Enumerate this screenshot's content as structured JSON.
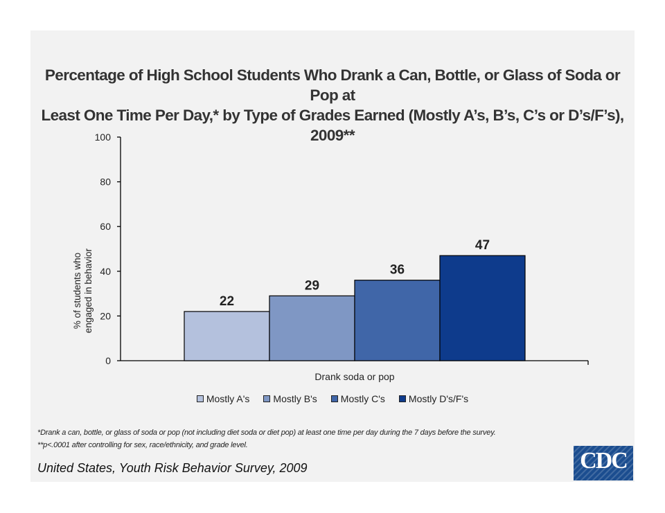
{
  "chart_data": {
    "type": "bar",
    "title_line1": "Percentage of High School Students Who Drank a Can, Bottle, or Glass of Soda or Pop at",
    "title_line2": "Least One Time Per Day,* by Type of Grades Earned (Mostly A’s, B’s, C’s or D’s/F’s), 2009**",
    "ylabel_line1": "% of students who",
    "ylabel_line2": "engaged in behavior",
    "xlabel": "",
    "categories": [
      "Drank soda or pop"
    ],
    "series": [
      {
        "name": "Mostly A's",
        "values": [
          22
        ],
        "color": "#b4c1dd"
      },
      {
        "name": "Mostly B's",
        "values": [
          29
        ],
        "color": "#7f97c4"
      },
      {
        "name": "Mostly C's",
        "values": [
          36
        ],
        "color": "#4066a8"
      },
      {
        "name": "Mostly D's/F's",
        "values": [
          47
        ],
        "color": "#0e3b8c"
      }
    ],
    "ylim": [
      0,
      100
    ],
    "yticks": [
      0,
      20,
      40,
      60,
      80,
      100
    ],
    "data_labels": true,
    "grid": false,
    "legend": "bottom"
  },
  "footnotes": {
    "note1": "*Drank a can, bottle, or glass of soda or pop (not including diet soda or diet pop) at least one time per day during the 7 days before the survey.",
    "note2": "**p<.0001 after controlling for sex, race/ethnicity, and grade level."
  },
  "source": "United States, Youth Risk Behavior Survey, 2009",
  "logo": {
    "text": "CDC",
    "color": "#1b4d8f"
  }
}
